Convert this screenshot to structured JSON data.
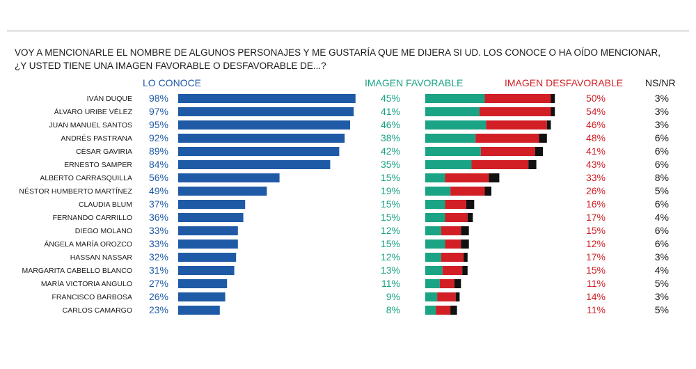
{
  "question": {
    "line1": "VOY A MENCIONARLE EL NOMBRE DE ALGUNOS PERSONAJES Y ME GUSTARÍA QUE ME DIJERA SI UD. LOS CONOCE O HA OÍDO MENCIONAR,",
    "line2": "¿Y USTED TIENE UNA IMAGEN FAVORABLE O DESFAVORABLE DE...?"
  },
  "headers": {
    "known": "LO CONOCE",
    "favorable": "IMAGEN FAVORABLE",
    "unfavorable": "IMAGEN DESFAVORABLE",
    "nsnr": "NS/NR"
  },
  "colors": {
    "known": "#1f5aa6",
    "favorable": "#1aa384",
    "unfavorable": "#d21f25",
    "nsnr": "#111111"
  },
  "chart_data": {
    "type": "bar",
    "title": "VOY A MENCIONARLE EL NOMBRE DE ALGUNOS PERSONAJES Y ME GUSTARÍA QUE ME DIJERA SI UD. LOS CONOCE O HA OÍDO MENCIONAR, ¿Y USTED TIENE UNA IMAGEN FAVORABLE O DESFAVORABLE DE...?",
    "categories": [
      "IVÁN DUQUE",
      "ÁLVARO URIBE VÉLEZ",
      "JUAN MANUEL SANTOS",
      "ANDRÉS PASTRANA",
      "CÉSAR GAVIRIA",
      "ERNESTO SAMPER",
      "ALBERTO CARRASQUILLA",
      "NÉSTOR HUMBERTO MARTÍNEZ",
      "CLAUDIA BLUM",
      "FERNANDO CARRILLO",
      "DIEGO MOLANO",
      "ÁNGELA MARÍA OROZCO",
      "HASSAN NASSAR",
      "MARGARITA CABELLO BLANCO",
      "MARÍA VICTORIA ANGULO",
      "FRANCISCO BARBOSA",
      "CARLOS CAMARGO"
    ],
    "series": [
      {
        "name": "LO CONOCE",
        "values": [
          98,
          97,
          95,
          92,
          89,
          84,
          56,
          49,
          37,
          36,
          33,
          33,
          32,
          31,
          27,
          26,
          23
        ]
      },
      {
        "name": "IMAGEN FAVORABLE",
        "values": [
          45,
          41,
          46,
          38,
          42,
          35,
          15,
          19,
          15,
          15,
          12,
          15,
          12,
          13,
          11,
          9,
          8
        ]
      },
      {
        "name": "IMAGEN DESFAVORABLE",
        "values": [
          50,
          54,
          46,
          48,
          41,
          43,
          33,
          26,
          16,
          17,
          15,
          12,
          17,
          15,
          11,
          14,
          11
        ]
      },
      {
        "name": "NS/NR",
        "values": [
          3,
          3,
          3,
          6,
          6,
          6,
          8,
          5,
          6,
          4,
          6,
          6,
          3,
          4,
          5,
          3,
          5
        ]
      }
    ],
    "unit": "%",
    "ylim": [
      0,
      100
    ]
  }
}
